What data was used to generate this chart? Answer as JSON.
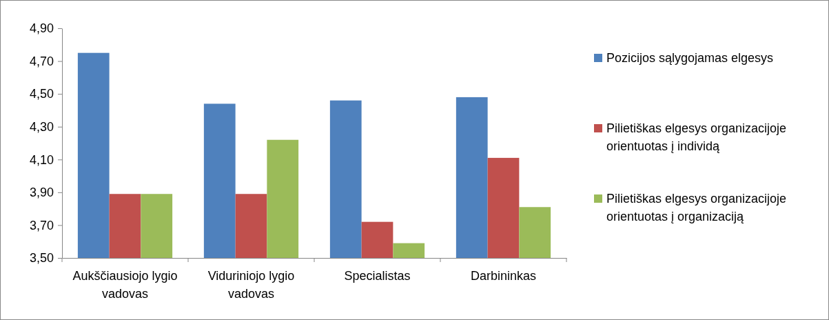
{
  "chart_data": {
    "type": "bar",
    "categories": [
      "Aukščiausiojo lygio vadovas",
      "Viduriniojo lygio vadovas",
      "Specialistas",
      "Darbininkas"
    ],
    "series": [
      {
        "name": "Pozicijos sąlygojamas elgesys",
        "color": "#4f81bd",
        "values": [
          4.75,
          4.44,
          4.46,
          4.48
        ]
      },
      {
        "name": "Pilietiškas elgesys organizacijoje orientuotas į individą",
        "color": "#c0504d",
        "values": [
          3.89,
          3.89,
          3.72,
          4.11
        ]
      },
      {
        "name": "Pilietiškas elgesys organizacijoje orientuotas į organizaciją",
        "color": "#9bbb59",
        "values": [
          3.89,
          4.22,
          3.59,
          3.81
        ]
      }
    ],
    "ylim": [
      3.5,
      4.9
    ],
    "yticks": [
      {
        "value": 3.5,
        "label": "3,50"
      },
      {
        "value": 3.7,
        "label": "3,70"
      },
      {
        "value": 3.9,
        "label": "3,90"
      },
      {
        "value": 4.1,
        "label": "4,10"
      },
      {
        "value": 4.3,
        "label": "4,30"
      },
      {
        "value": 4.5,
        "label": "4,50"
      },
      {
        "value": 4.7,
        "label": "4,70"
      },
      {
        "value": 4.9,
        "label": "4,90"
      }
    ],
    "grid": false,
    "legend": "right"
  }
}
